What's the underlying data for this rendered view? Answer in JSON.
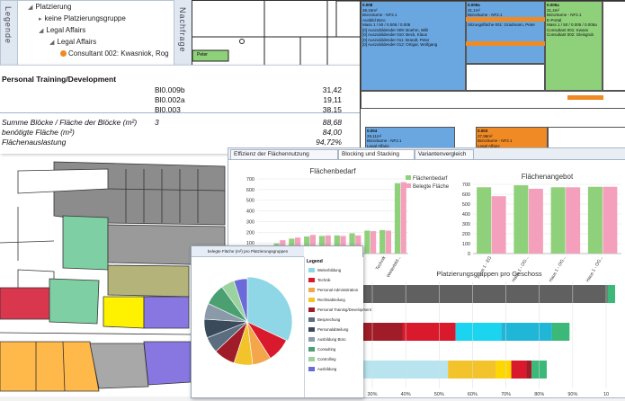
{
  "tree": {
    "side_tab": "Legende",
    "nodes": [
      {
        "label": "Platzierung",
        "indent": 0
      },
      {
        "label": "keine Platzierungsgruppe",
        "indent": 1
      },
      {
        "label": "Legal Affairs",
        "indent": 1
      },
      {
        "label": "Legal Affairs",
        "indent": 2
      },
      {
        "label": "Consultant 002: Kwasniok, Rog",
        "indent": 3
      }
    ],
    "nav_tab": "Nachfrage"
  },
  "plan_label": "Peter",
  "table": {
    "title": "Personal Training/Development",
    "rows": [
      {
        "block": "Bl0.009b",
        "value": "31,42"
      },
      {
        "block": "Bl0.002a",
        "value": "19,11"
      },
      {
        "block": "Bl0.003",
        "value": "38,15"
      }
    ],
    "summary": [
      {
        "label": "Summe Blöcke / Fläche der Blöcke (m²)",
        "count": "3",
        "value": "88,68"
      },
      {
        "label": "benötigte Fläche (m²)",
        "count": "",
        "value": "84,00"
      },
      {
        "label": "Flächenauslastung",
        "count": "",
        "value": "94,72%"
      }
    ]
  },
  "blocks": [
    {
      "id": "b1",
      "lines": [
        "0.008",
        "38,15m²",
        "Büroräume - NF2.1",
        "Ausbild Büro",
        "Mass 1 / 50 / 0.008 / 0.008",
        "",
        "[0] Auszubildender 009: Boehm, Willi",
        "[0] Auszubildender 010: Beck, Klaus",
        "[0] Auszubildender 011: Brandt, Peter",
        "[0] Auszubildender 012: Ortigar, Wolfgang"
      ]
    },
    {
      "id": "b2",
      "lines": [
        "0.009a",
        "31,1m²",
        "Büroräume - NF2.1",
        "Mass 1 / 50 / 0.009 / 0.009a",
        "",
        "Sitzungsfläche 001: Gradmann, Peter"
      ]
    },
    {
      "id": "b3",
      "lines": [
        "0.005a",
        "31,4m²",
        "Büroräume - NF2.1",
        "E-Portal",
        "Mass 1 / 50 / 0.005 / 0.005a",
        "",
        "Consultant 001: Kwasn",
        "Consultant 002: Gleisgrub"
      ]
    },
    {
      "id": "b4",
      "lines": [
        "0.004",
        "29,11m²",
        "Büroräume - NF2.1",
        "Legal Affairs",
        "Mass 1 / 50 / 0.004 / 0.004"
      ]
    },
    {
      "id": "b5",
      "lines": [
        "0.003",
        "37,98m²",
        "Büroräume - NF2.1",
        "Legal Affairs",
        "Mass 1 / 50 / 0.003 / 0.003"
      ]
    }
  ],
  "charts_window": {
    "tabs": [
      "Effizienz der Flächennutzung",
      "Blocking und Stacking",
      "Variantenvergleich"
    ],
    "active_tab": 1
  },
  "chart_data": [
    {
      "type": "bar",
      "title": "Flächenbedarf",
      "series": [
        {
          "name": "Flächenbedarf",
          "color": "#8fd07a",
          "values": [
            55,
            95,
            140,
            160,
            165,
            170,
            190,
            215,
            220,
            660
          ]
        },
        {
          "name": "Belegte Fläche",
          "color": "#f4a0bd",
          "values": [
            60,
            125,
            150,
            175,
            170,
            165,
            170,
            210,
            215,
            670
          ]
        }
      ],
      "categories": [
        "",
        "",
        "",
        "",
        "",
        "",
        "",
        "",
        "Technik",
        "Weiterbild..."
      ],
      "ylim": [
        0,
        700
      ],
      "yticks": [
        0,
        100,
        200,
        300,
        400,
        500,
        600,
        700
      ],
      "legend": "top-right"
    },
    {
      "type": "bar",
      "title": "Flächenangebot",
      "series": [
        {
          "name": "Flächenangebot",
          "color": "#8fd07a",
          "values": [
            670,
            690,
            670,
            675
          ]
        },
        {
          "name": "Belegte Fläche",
          "color": "#f4a0bd",
          "values": [
            580,
            655,
            670,
            675
          ]
        }
      ],
      "categories": [
        "Haus 1 - EG",
        "Haus 1 - OG...",
        "Haus 1 - OG...",
        "Haus 1 - OG..."
      ],
      "ylim": [
        0,
        700
      ],
      "yticks": [
        0,
        100,
        200,
        300,
        400,
        500,
        600,
        700
      ]
    },
    {
      "type": "bar",
      "title": "Platzierungsgruppen pro Geschoss",
      "orientation": "horizontal-stacked",
      "xlim": [
        0,
        100
      ],
      "xticks": [
        "30%",
        "40%",
        "50%",
        "60%",
        "70%",
        "80%",
        "90%",
        "10"
      ],
      "xlabel": "Betrachtungsze",
      "rows": [
        {
          "segments": [
            {
              "value": 100,
              "color": "#606060"
            },
            {
              "value": 3,
              "color": "#3cb878"
            }
          ]
        },
        {
          "segments": [
            {
              "value": 19,
              "color": "#a01c28"
            },
            {
              "value": 21,
              "color": "#d81a2c"
            },
            {
              "value": 18,
              "color": "#1ad4f0"
            },
            {
              "value": 20,
              "color": "#1fb6d8"
            },
            {
              "value": 7,
              "color": "#3cb878"
            }
          ]
        },
        {
          "segments": [
            {
              "value": 2,
              "color": "#6a6ad8"
            },
            {
              "value": 35,
              "color": "#b7e4ee"
            },
            {
              "value": 19,
              "color": "#f2c32b"
            },
            {
              "value": 6,
              "color": "#ffd700"
            },
            {
              "value": 6,
              "color": "#d81a2c"
            },
            {
              "value": 2,
              "color": "#a01c28"
            },
            {
              "value": 6,
              "color": "#3cb878"
            }
          ]
        }
      ]
    },
    {
      "type": "pie",
      "title": "belegte Fläche (m²) pro Platzierungsgruppen",
      "slices": [
        {
          "label": "Weiterbildung",
          "value": 32,
          "color": "#8fd7e6"
        },
        {
          "label": "Technik",
          "value": 9,
          "color": "#d81a2c"
        },
        {
          "label": "Personal Administration",
          "value": 7,
          "color": "#f4a64a"
        },
        {
          "label": "Rechtsabteilung",
          "value": 7,
          "color": "#f2c32b"
        },
        {
          "label": "Personal Training/Development",
          "value": 8,
          "color": "#a01c28"
        },
        {
          "label": "Besprechung",
          "value": 6,
          "color": "#5a6e80"
        },
        {
          "label": "Personalabteilung",
          "value": 7,
          "color": "#3a4a5a"
        },
        {
          "label": "Ausbildung Büro",
          "value": 6,
          "color": "#8a9aa8"
        },
        {
          "label": "Consulting",
          "value": 8,
          "color": "#4aa070"
        },
        {
          "label": "Controlling",
          "value": 5,
          "color": "#9ad2a0"
        },
        {
          "label": "Ausbildung",
          "value": 5,
          "color": "#6a6ad8"
        }
      ],
      "legend_title": "Legend"
    }
  ]
}
